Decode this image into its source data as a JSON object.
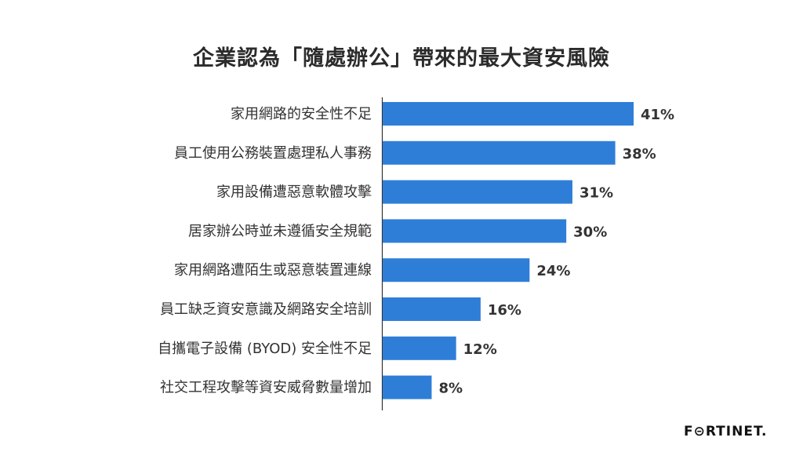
{
  "chart_data": {
    "type": "bar",
    "orientation": "horizontal",
    "title": "企業認為「隨處辦公」帶來的最大資安風險",
    "categories": [
      "家用網路的安全性不足",
      "員工使用公務裝置處理私人事務",
      "家用設備遭惡意軟體攻擊",
      "居家辦公時並未遵循安全規範",
      "家用網路遭陌生或惡意裝置連線",
      "員工缺乏資安意識及網路安全培訓",
      "自攜電子設備 (BYOD) 安全性不足",
      "社交工程攻擊等資安威脅數量增加"
    ],
    "values": [
      41,
      38,
      31,
      30,
      24,
      16,
      12,
      8
    ],
    "value_labels": [
      "41%",
      "38%",
      "31%",
      "30%",
      "24%",
      "16%",
      "12%",
      "8%"
    ],
    "xlim": [
      0,
      41
    ],
    "grid": false,
    "bar_color": "#2e7ed8"
  },
  "brand": {
    "logo_text": "F⊝RTINET."
  }
}
